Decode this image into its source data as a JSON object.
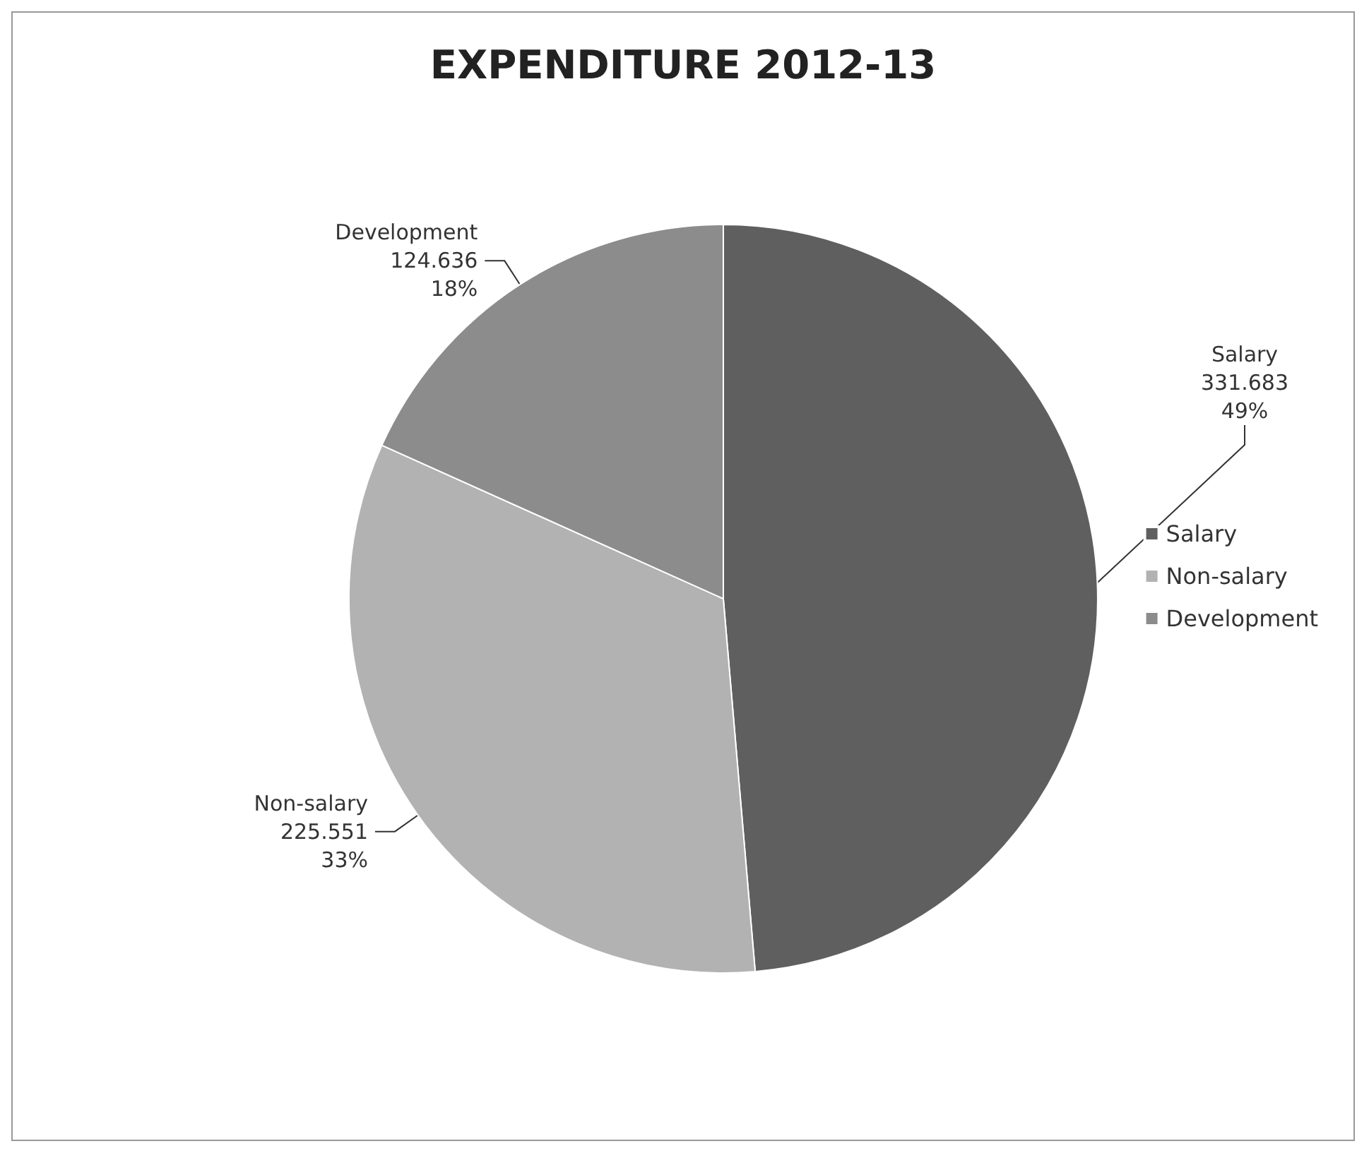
{
  "chart_data": {
    "type": "pie",
    "title": "EXPENDITURE 2012-13",
    "categories": [
      "Salary",
      "Non-salary",
      "Development"
    ],
    "values": [
      331.683,
      225.551,
      124.636
    ],
    "value_labels": [
      "331.683\n49%",
      "225.551\n33%",
      "124.636\n18%"
    ],
    "colors": [
      "#5f5f5f",
      "#b2b2b2",
      "#8c8c8c"
    ],
    "legend": "right"
  }
}
